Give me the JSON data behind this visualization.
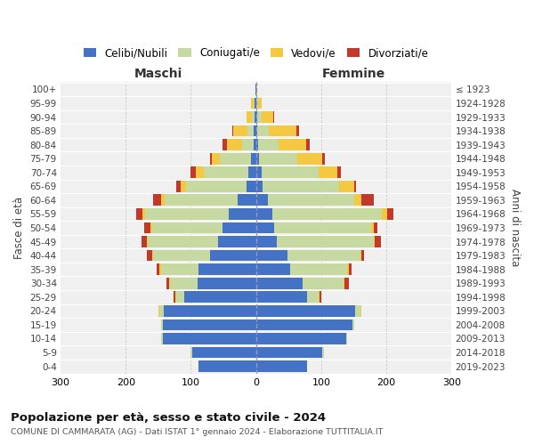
{
  "age_groups": [
    "100+",
    "95-99",
    "90-94",
    "85-89",
    "80-84",
    "75-79",
    "70-74",
    "65-69",
    "60-64",
    "55-59",
    "50-54",
    "45-49",
    "40-44",
    "35-39",
    "30-34",
    "25-29",
    "20-24",
    "15-19",
    "10-14",
    "5-9",
    "0-4"
  ],
  "birth_years": [
    "≤ 1923",
    "1924-1928",
    "1929-1933",
    "1934-1938",
    "1939-1943",
    "1944-1948",
    "1949-1953",
    "1954-1958",
    "1959-1963",
    "1964-1968",
    "1969-1973",
    "1974-1978",
    "1979-1983",
    "1984-1988",
    "1989-1993",
    "1994-1998",
    "1999-2003",
    "2004-2008",
    "2009-2013",
    "2014-2018",
    "2019-2023"
  ],
  "colors": {
    "celibi": "#4472c4",
    "coniugati": "#c5d9a0",
    "vedovi": "#f5c842",
    "divorziati": "#c0392b"
  },
  "maschi": {
    "celibi": [
      1,
      2,
      2,
      3,
      4,
      8,
      12,
      15,
      28,
      42,
      52,
      58,
      70,
      88,
      90,
      110,
      142,
      143,
      143,
      98,
      88
    ],
    "coniugati": [
      0,
      2,
      5,
      10,
      18,
      48,
      68,
      92,
      112,
      128,
      108,
      108,
      88,
      58,
      42,
      12,
      6,
      2,
      2,
      2,
      0
    ],
    "vedovi": [
      0,
      4,
      8,
      22,
      22,
      12,
      12,
      8,
      6,
      4,
      2,
      2,
      2,
      2,
      2,
      2,
      2,
      0,
      0,
      0,
      0
    ],
    "divorziati": [
      0,
      0,
      0,
      2,
      8,
      2,
      8,
      8,
      12,
      10,
      10,
      8,
      8,
      4,
      4,
      2,
      0,
      0,
      0,
      0,
      0
    ]
  },
  "femmine": {
    "celibi": [
      0,
      1,
      2,
      2,
      3,
      5,
      8,
      10,
      18,
      25,
      28,
      32,
      48,
      52,
      72,
      78,
      152,
      148,
      138,
      102,
      78
    ],
    "coniugati": [
      0,
      2,
      6,
      18,
      32,
      58,
      88,
      118,
      132,
      168,
      148,
      148,
      112,
      88,
      62,
      18,
      8,
      2,
      2,
      2,
      0
    ],
    "vedovi": [
      2,
      6,
      18,
      42,
      42,
      38,
      28,
      22,
      12,
      8,
      4,
      2,
      2,
      2,
      2,
      2,
      2,
      0,
      0,
      0,
      0
    ],
    "divorziati": [
      0,
      0,
      2,
      4,
      6,
      4,
      6,
      4,
      18,
      10,
      6,
      10,
      4,
      4,
      6,
      2,
      0,
      0,
      0,
      0,
      0
    ]
  },
  "title": "Popolazione per età, sesso e stato civile - 2024",
  "subtitle": "COMUNE DI CAMMARATA (AG) - Dati ISTAT 1° gennaio 2024 - Elaborazione TUTTITALIA.IT",
  "xlabel_left": "Maschi",
  "xlabel_right": "Femmine",
  "ylabel_left": "Fasce di età",
  "ylabel_right": "Anni di nascita",
  "legend_labels": [
    "Celibi/Nubili",
    "Coniugati/e",
    "Vedovi/e",
    "Divorziati/e"
  ],
  "xlim": 300,
  "background": "#f0f0f0"
}
